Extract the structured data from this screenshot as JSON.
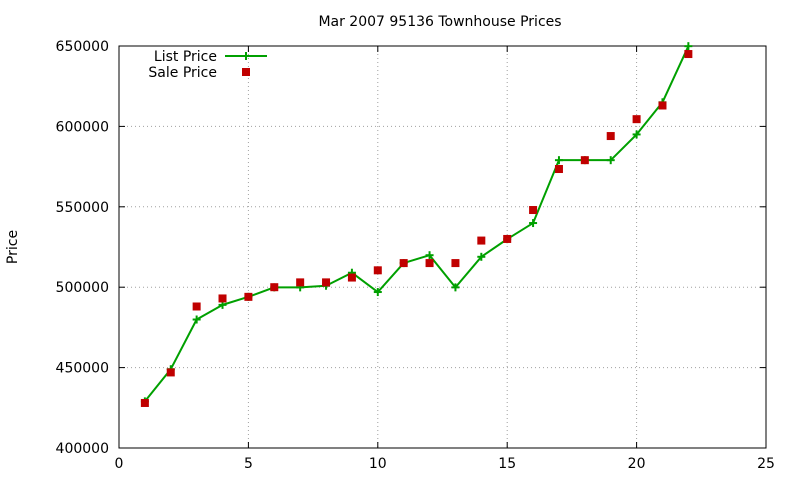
{
  "chart_data": {
    "type": "line",
    "title": "Mar 2007 95136 Townhouse Prices",
    "xlabel": "",
    "ylabel": "Price",
    "xlim": [
      0,
      25
    ],
    "ylim": [
      400000,
      650000
    ],
    "xticks": [
      0,
      5,
      10,
      15,
      20,
      25
    ],
    "yticks": [
      400000,
      450000,
      500000,
      550000,
      600000,
      650000
    ],
    "grid": true,
    "legend_position": "top-left",
    "series": [
      {
        "name": "List Price",
        "style": "line+plus",
        "color": "#00a000",
        "x": [
          1,
          2,
          3,
          4,
          5,
          6,
          7,
          8,
          9,
          10,
          11,
          12,
          13,
          14,
          15,
          16,
          17,
          18,
          19,
          20,
          21,
          22
        ],
        "y": [
          429000,
          449000,
          479900,
          489000,
          494000,
          499900,
          499900,
          500900,
          509000,
          497000,
          515000,
          519900,
          499900,
          518900,
          529900,
          539900,
          579000,
          579000,
          579000,
          595000,
          615000,
          649900
        ]
      },
      {
        "name": "Sale Price",
        "style": "square",
        "color": "#c00000",
        "x": [
          1,
          2,
          3,
          4,
          5,
          6,
          7,
          8,
          9,
          10,
          11,
          12,
          13,
          14,
          15,
          16,
          17,
          18,
          19,
          20,
          21,
          22
        ],
        "y": [
          428000,
          447000,
          488000,
          493000,
          494000,
          500000,
          503000,
          503000,
          506000,
          510500,
          515000,
          515000,
          515000,
          529000,
          530000,
          548000,
          573500,
          579000,
          594000,
          604500,
          613000,
          645000
        ]
      }
    ]
  }
}
